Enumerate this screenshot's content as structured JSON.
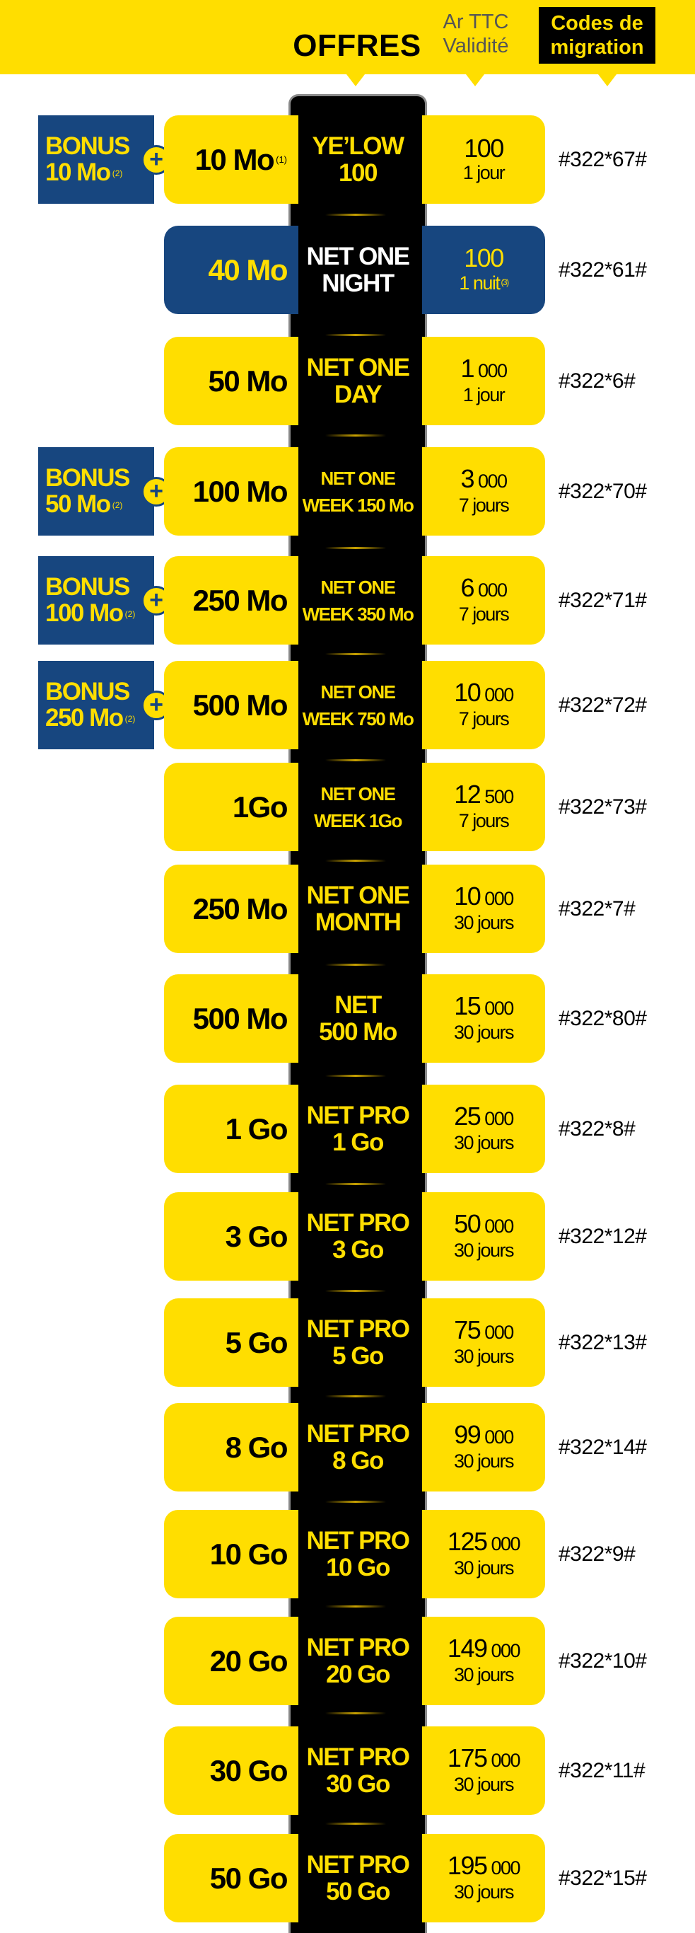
{
  "header": {
    "offers_title": "OFFRES",
    "price_line1": "Ar TTC",
    "price_line2": "Validité",
    "codes_line1": "Codes de",
    "codes_line2": "migration"
  },
  "colors": {
    "yellow": "#ffde00",
    "blue": "#17467f",
    "black": "#000000"
  },
  "offers": [
    {
      "volume": "10 Mo",
      "volume_note": "(1)",
      "name1": "YE’LOW",
      "name2": "100",
      "amount_main": "100",
      "amount_rest": "",
      "duration": "1 jour",
      "duration_note": "",
      "code": "#322*67#",
      "bonus1": "BONUS",
      "bonus2": "10 Mo",
      "bonus_note": "(2)",
      "highlighted": false
    },
    {
      "volume": "40 Mo",
      "volume_note": "",
      "name1": "NET ONE",
      "name2": "NIGHT",
      "amount_main": "100",
      "amount_rest": "",
      "duration": "1 nuit",
      "duration_note": "(3)",
      "code": "#322*61#",
      "highlighted": true
    },
    {
      "volume": "50 Mo",
      "volume_note": "",
      "name1": "NET ONE",
      "name2": "DAY",
      "amount_main": "1",
      "amount_rest": " 000",
      "duration": "1 jour",
      "duration_note": "",
      "code": "#322*6#",
      "highlighted": false
    },
    {
      "volume": "100 Mo",
      "volume_note": "",
      "name1": "NET ONE",
      "name2": "WEEK 150 Mo",
      "amount_main": "3",
      "amount_rest": " 000",
      "duration": "7 jours",
      "duration_note": "",
      "code": "#322*70#",
      "bonus1": "BONUS",
      "bonus2": "50 Mo",
      "bonus_note": "(2)",
      "highlighted": false
    },
    {
      "volume": "250 Mo",
      "volume_note": "",
      "name1": "NET ONE",
      "name2": "WEEK 350 Mo",
      "amount_main": "6",
      "amount_rest": " 000",
      "duration": "7 jours",
      "duration_note": "",
      "code": "#322*71#",
      "bonus1": "BONUS",
      "bonus2": "100 Mo",
      "bonus_note": "(2)",
      "highlighted": false
    },
    {
      "volume": "500 Mo",
      "volume_note": "",
      "name1": "NET ONE",
      "name2": "WEEK 750 Mo",
      "amount_main": "10",
      "amount_rest": " 000",
      "duration": "7 jours",
      "duration_note": "",
      "code": "#322*72#",
      "bonus1": "BONUS",
      "bonus2": "250 Mo",
      "bonus_note": "(2)",
      "highlighted": false
    },
    {
      "volume": "1Go",
      "volume_note": "",
      "name1": "NET ONE",
      "name2": "WEEK  1Go",
      "amount_main": "12",
      "amount_rest": " 500",
      "duration": "7 jours",
      "duration_note": "",
      "code": "#322*73#",
      "highlighted": false
    },
    {
      "volume": "250 Mo",
      "volume_note": "",
      "name1": "NET ONE",
      "name2": "MONTH",
      "amount_main": "10",
      "amount_rest": " 000",
      "duration": "30 jours",
      "duration_note": "",
      "code": "#322*7#",
      "highlighted": false
    },
    {
      "volume": "500 Mo",
      "volume_note": "",
      "name1": "NET",
      "name2": "500 Mo",
      "amount_main": "15",
      "amount_rest": " 000",
      "duration": "30 jours",
      "duration_note": "",
      "code": "#322*80#",
      "highlighted": false
    },
    {
      "volume": "1 Go",
      "volume_note": "",
      "name1": "NET PRO",
      "name2": "1 Go",
      "amount_main": "25",
      "amount_rest": " 000",
      "duration": "30 jours",
      "duration_note": "",
      "code": "#322*8#",
      "highlighted": false
    },
    {
      "volume": "3 Go",
      "volume_note": "",
      "name1": "NET PRO",
      "name2": "3 Go",
      "amount_main": "50",
      "amount_rest": " 000",
      "duration": "30 jours",
      "duration_note": "",
      "code": "#322*12#",
      "highlighted": false
    },
    {
      "volume": "5 Go",
      "volume_note": "",
      "name1": "NET PRO",
      "name2": "5 Go",
      "amount_main": "75",
      "amount_rest": " 000",
      "duration": "30 jours",
      "duration_note": "",
      "code": "#322*13#",
      "highlighted": false
    },
    {
      "volume": "8 Go",
      "volume_note": "",
      "name1": "NET PRO",
      "name2": "8 Go",
      "amount_main": "99",
      "amount_rest": " 000",
      "duration": "30 jours",
      "duration_note": "",
      "code": "#322*14#",
      "highlighted": false
    },
    {
      "volume": "10 Go",
      "volume_note": "",
      "name1": "NET PRO",
      "name2": "10 Go",
      "amount_main": "125",
      "amount_rest": " 000",
      "duration": "30 jours",
      "duration_note": "",
      "code": "#322*9#",
      "highlighted": false
    },
    {
      "volume": "20 Go",
      "volume_note": "",
      "name1": "NET PRO",
      "name2": "20 Go",
      "amount_main": "149",
      "amount_rest": " 000",
      "duration": "30 jours",
      "duration_note": "",
      "code": "#322*10#",
      "highlighted": false
    },
    {
      "volume": "30 Go",
      "volume_note": "",
      "name1": "NET PRO",
      "name2": "30 Go",
      "amount_main": "175",
      "amount_rest": " 000",
      "duration": "30 jours",
      "duration_note": "",
      "code": "#322*11#",
      "highlighted": false
    },
    {
      "volume": "50 Go",
      "volume_note": "",
      "name1": "NET PRO",
      "name2": "50 Go",
      "amount_main": "195",
      "amount_rest": " 000",
      "duration": "30 jours",
      "duration_note": "",
      "code": "#322*15#",
      "highlighted": false
    }
  ]
}
